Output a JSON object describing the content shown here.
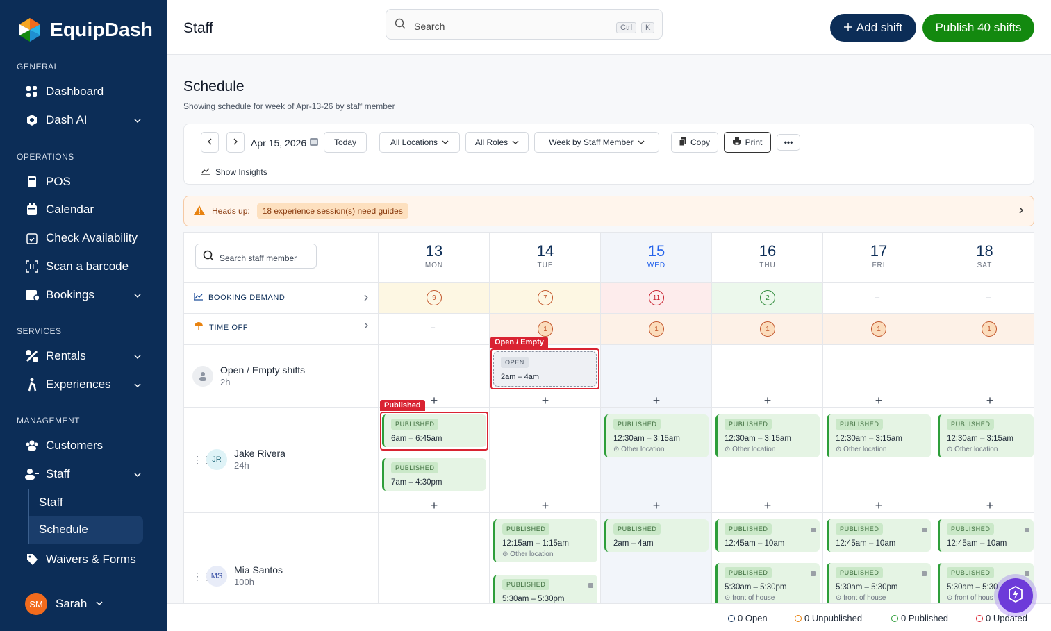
{
  "app": {
    "name": "EquipDash"
  },
  "sidebar": {
    "sections": [
      {
        "label": "GENERAL"
      },
      {
        "label": "OPERATIONS"
      },
      {
        "label": "SERVICES"
      },
      {
        "label": "MANAGEMENT"
      }
    ],
    "items": [
      {
        "label": "Dashboard",
        "icon": "grid-icon"
      },
      {
        "label": "Dash AI",
        "icon": "ai-icon"
      },
      {
        "label": "POS",
        "icon": "pos-icon"
      },
      {
        "label": "Calendar",
        "icon": "calendar-icon"
      },
      {
        "label": "Check Availability",
        "icon": "calendar-check-icon"
      },
      {
        "label": "Scan a barcode",
        "icon": "barcode-icon"
      },
      {
        "label": "Bookings",
        "icon": "bookings-icon"
      },
      {
        "label": "Rentals",
        "icon": "rentals-icon"
      },
      {
        "label": "Experiences",
        "icon": "experiences-icon"
      },
      {
        "label": "Customers",
        "icon": "customers-icon"
      },
      {
        "label": "Staff",
        "icon": "staff-icon"
      },
      {
        "label": "Waivers & Forms",
        "icon": "tag-icon"
      }
    ],
    "staff_sub": [
      {
        "label": "Staff"
      },
      {
        "label": "Schedule",
        "active": true
      }
    ],
    "user": {
      "initials": "SM",
      "name": "Sarah"
    }
  },
  "header": {
    "title": "Staff",
    "search_placeholder": "Search",
    "kbd": [
      "Ctrl",
      "K"
    ],
    "add_shift": "Add shift",
    "publish": "Publish 40 shifts"
  },
  "schedule": {
    "title": "Schedule",
    "subtitle": "Showing schedule for week of Apr-13-26 by staff member",
    "toolbar": {
      "date": "Apr 15, 2026",
      "today": "Today",
      "locations": "All Locations",
      "roles": "All Roles",
      "view": "Week by Staff Member",
      "copy": "Copy",
      "print": "Print",
      "more": "•••",
      "insights": "Show Insights"
    },
    "alert": {
      "label": "Heads up:",
      "message": "18 experience session(s) need guides"
    },
    "search_staff": "Search staff member",
    "days": [
      {
        "num": "13",
        "name": "MON"
      },
      {
        "num": "14",
        "name": "TUE"
      },
      {
        "num": "15",
        "name": "WED",
        "today": true
      },
      {
        "num": "16",
        "name": "THU"
      },
      {
        "num": "17",
        "name": "FRI"
      },
      {
        "num": "18",
        "name": "SAT"
      }
    ],
    "booking_demand": {
      "label": "BOOKING DEMAND",
      "values": [
        "9",
        "7",
        "11",
        "2",
        "–",
        "–"
      ]
    },
    "time_off": {
      "label": "TIME OFF",
      "values": [
        "–",
        "1",
        "1",
        "1",
        "1",
        "1"
      ]
    },
    "open_row": {
      "name": "Open / Empty shifts",
      "hours": "2h",
      "tag": "Open / Empty",
      "badge": "OPEN",
      "time": "2am – 4am"
    },
    "jake": {
      "initials": "JR",
      "name": "Jake Rivera",
      "hours": "24h",
      "tag": "Published",
      "badge": "PUBLISHED",
      "mon1": "6am – 6:45am",
      "mon2": "7am – 4:30pm",
      "rest_time": "12:30am – 3:15am",
      "rest_loc": "Other location"
    },
    "mia": {
      "initials": "MS",
      "name": "Mia Santos",
      "hours": "100h",
      "badge": "PUBLISHED",
      "tue1": "12:15am – 1:15am",
      "tue1_loc": "Other location",
      "tue2": "5:30am – 5:30pm",
      "wed1": "2am – 4am",
      "late1": "12:45am – 10am",
      "late2": "5:30am – 5:30pm",
      "late2_loc": "front of house",
      "sat2": "5:30am – 5:30",
      "sat2_loc": "front of hous"
    }
  },
  "status": {
    "open": "0 Open",
    "unpublished": "0 Unpublished",
    "published": "0 Published",
    "updated": "0 Updated"
  },
  "colors": {
    "sidebar": "#0c2d57",
    "publish": "#13890f",
    "accent": "#2563eb",
    "alert": "#d92332"
  }
}
